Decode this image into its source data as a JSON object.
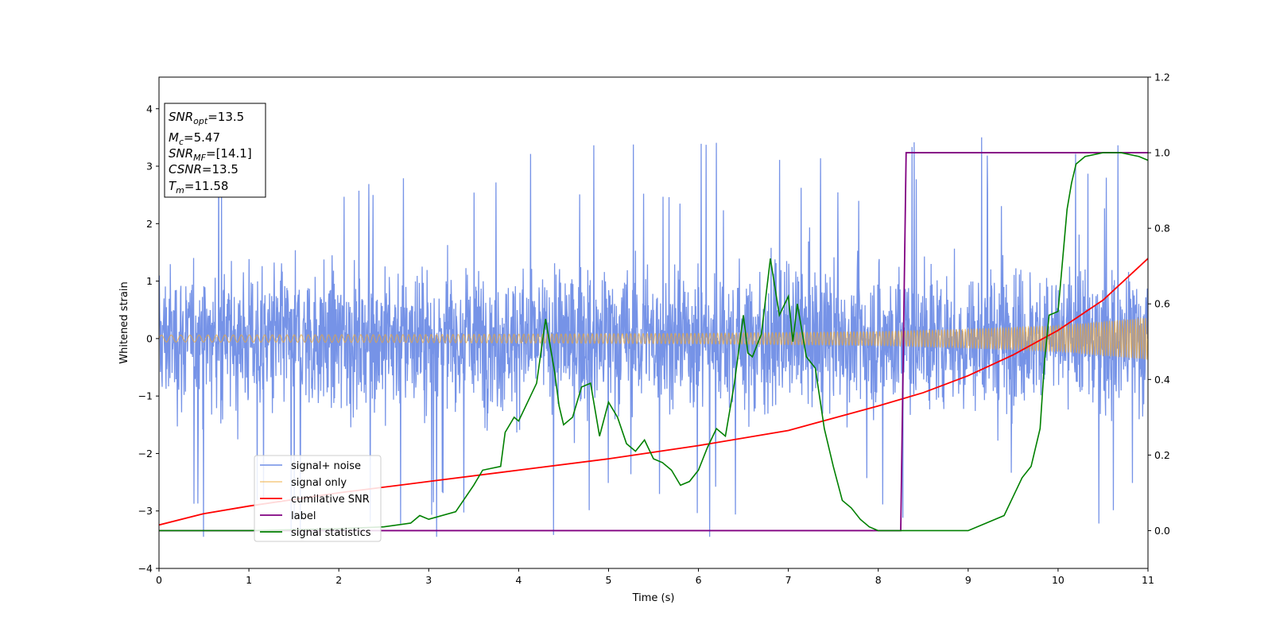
{
  "chart_data": {
    "type": "line",
    "xlabel": "Time (s)",
    "ylabel": "Whitened strain",
    "xlim": [
      0,
      11
    ],
    "ylim": [
      -4,
      4.55
    ],
    "y2lim": [
      -0.1,
      1.2
    ],
    "x_ticks": [
      "0",
      "1",
      "2",
      "3",
      "4",
      "5",
      "6",
      "7",
      "8",
      "9",
      "10",
      "11"
    ],
    "y_ticks": [
      "−4",
      "−3",
      "−2",
      "−1",
      "0",
      "1",
      "2",
      "3",
      "4"
    ],
    "y2_ticks": [
      "0.0",
      "0.2",
      "0.4",
      "0.6",
      "0.8",
      "1.0",
      "1.2"
    ],
    "info_box": {
      "snr_opt": {
        "main": "SNR",
        "sub": "opt",
        "value": "=13.5"
      },
      "mc": {
        "main": "M",
        "sub": "c",
        "value": "=5.47"
      },
      "snr_mf": {
        "main": "SNR",
        "sub": "MF",
        "value": "=[14.1]"
      },
      "csnr": {
        "main": "CSNR",
        "value": "=13.5"
      },
      "tm": {
        "main": "T",
        "sub": "m",
        "value": "=11.58"
      }
    },
    "legend": {
      "placement": "lower-left",
      "entries": [
        "signal+ noise",
        "signal only",
        "cumilative SNR",
        "label",
        "signal statistics"
      ]
    },
    "colors": {
      "noise": "#6f8de6",
      "signal": "#f0a830",
      "cumulative_snr": "#ff0000",
      "label": "#800080",
      "statistics": "#008000"
    },
    "series": [
      {
        "name": "signal+ noise",
        "axis": "left",
        "description_values": {
          "typical_range": [
            -1.8,
            1.8
          ],
          "peak_max": 3.62,
          "peak_min": -3.45
        }
      },
      {
        "name": "signal only",
        "axis": "left",
        "envelope_x": [
          0,
          3,
          6,
          8,
          9,
          10,
          11
        ],
        "envelope_amplitude": [
          0.06,
          0.07,
          0.09,
          0.12,
          0.16,
          0.22,
          0.36
        ]
      },
      {
        "name": "cumilative SNR",
        "axis": "right",
        "x": [
          0,
          0.5,
          1,
          2,
          3,
          4,
          5,
          6,
          7,
          8,
          8.5,
          9,
          9.5,
          10,
          10.5,
          11
        ],
        "y": [
          0.015,
          0.045,
          0.065,
          0.1,
          0.13,
          0.16,
          0.19,
          0.225,
          0.265,
          0.33,
          0.365,
          0.41,
          0.465,
          0.53,
          0.61,
          0.72
        ]
      },
      {
        "name": "label",
        "axis": "right",
        "x": [
          0,
          8.25,
          8.31,
          11
        ],
        "y": [
          0,
          0,
          1,
          1
        ]
      },
      {
        "name": "signal statistics",
        "axis": "right",
        "x": [
          0,
          1,
          2,
          2.5,
          2.8,
          2.9,
          3.0,
          3.3,
          3.5,
          3.6,
          3.8,
          3.85,
          3.95,
          4.0,
          4.1,
          4.2,
          4.3,
          4.4,
          4.45,
          4.5,
          4.6,
          4.7,
          4.8,
          4.9,
          5.0,
          5.1,
          5.2,
          5.3,
          5.4,
          5.5,
          5.6,
          5.7,
          5.8,
          5.9,
          6.0,
          6.1,
          6.2,
          6.3,
          6.4,
          6.5,
          6.55,
          6.6,
          6.7,
          6.8,
          6.9,
          7.0,
          7.05,
          7.1,
          7.2,
          7.3,
          7.4,
          7.5,
          7.6,
          7.7,
          7.8,
          7.9,
          8.0,
          8.2,
          8.4,
          8.6,
          8.8,
          9.0,
          9.2,
          9.3,
          9.4,
          9.5,
          9.6,
          9.7,
          9.8,
          9.85,
          9.9,
          10.0,
          10.1,
          10.15,
          10.2,
          10.3,
          10.5,
          10.7,
          10.9,
          11.0
        ],
        "y": [
          0,
          0,
          0.005,
          0.01,
          0.02,
          0.04,
          0.03,
          0.05,
          0.12,
          0.16,
          0.17,
          0.26,
          0.3,
          0.29,
          0.34,
          0.39,
          0.56,
          0.42,
          0.33,
          0.28,
          0.3,
          0.38,
          0.39,
          0.25,
          0.34,
          0.3,
          0.23,
          0.21,
          0.24,
          0.19,
          0.18,
          0.16,
          0.12,
          0.13,
          0.16,
          0.22,
          0.27,
          0.25,
          0.39,
          0.57,
          0.47,
          0.46,
          0.52,
          0.72,
          0.57,
          0.62,
          0.5,
          0.6,
          0.46,
          0.43,
          0.27,
          0.17,
          0.08,
          0.06,
          0.03,
          0.01,
          0.0,
          0.0,
          0.0,
          0.0,
          0.0,
          0.0,
          0.02,
          0.03,
          0.04,
          0.09,
          0.14,
          0.17,
          0.27,
          0.45,
          0.57,
          0.58,
          0.85,
          0.92,
          0.97,
          0.99,
          1.0,
          1.0,
          0.99,
          0.98
        ]
      }
    ]
  }
}
